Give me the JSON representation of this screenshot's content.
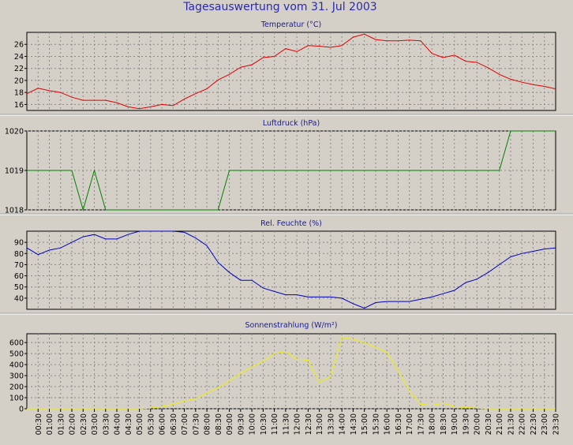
{
  "title": "Tagesauswertung vom 31. Jul 2003",
  "colors": {
    "temperature": "#e00000",
    "pressure": "#008000",
    "humidity": "#0000c0",
    "radiation": "#f0f000",
    "grid": "#888888"
  },
  "chart_data": [
    {
      "type": "line",
      "title": "Temperatur (°C)",
      "ylim": [
        15,
        28
      ],
      "yticks": [
        "16",
        "18",
        "20",
        "22",
        "24",
        "26"
      ],
      "series": [
        {
          "values": [
            17.8,
            18.7,
            18.3,
            18.0,
            17.2,
            16.7,
            16.7,
            16.7,
            16.3,
            15.6,
            15.3,
            15.6,
            16.0,
            15.8,
            16.9,
            17.8,
            18.6,
            20.1,
            21.0,
            22.2,
            22.6,
            23.8,
            24.0,
            25.3,
            24.8,
            25.8,
            25.7,
            25.5,
            25.8,
            27.2,
            27.7,
            26.8,
            26.6,
            26.6,
            26.7,
            26.6,
            24.5,
            23.8,
            24.2,
            23.2,
            23.0,
            22.1,
            21.0,
            20.2,
            19.7,
            19.3,
            19.0,
            18.6
          ]
        }
      ]
    },
    {
      "type": "line",
      "title": "Luftdruck (hPa)",
      "ylim": [
        1018,
        1020
      ],
      "yticks": [
        "1018",
        "1019",
        "1020"
      ],
      "series": [
        {
          "values": [
            1019,
            1019,
            1019,
            1019,
            1019,
            1018,
            1019,
            1018,
            1018,
            1018,
            1018,
            1018,
            1018,
            1018,
            1018,
            1018,
            1018,
            1018,
            1019,
            1019,
            1019,
            1019,
            1019,
            1019,
            1019,
            1019,
            1019,
            1019,
            1019,
            1019,
            1019,
            1019,
            1019,
            1019,
            1019,
            1019,
            1019,
            1019,
            1019,
            1019,
            1019,
            1019,
            1019,
            1020,
            1020,
            1020,
            1020,
            1020
          ]
        }
      ]
    },
    {
      "type": "line",
      "title": "Rel. Feuchte (%)",
      "ylim": [
        30,
        100
      ],
      "yticks": [
        "40",
        "50",
        "60",
        "70",
        "80",
        "90"
      ],
      "series": [
        {
          "values": [
            85,
            79,
            83,
            85,
            90,
            95,
            97,
            93,
            93,
            97,
            100,
            100,
            100,
            100,
            99,
            94,
            87,
            72,
            63,
            56,
            56,
            49,
            46,
            43,
            43,
            41,
            41,
            41,
            40,
            35,
            31,
            36,
            37,
            37,
            37,
            39,
            41,
            44,
            47,
            54,
            57,
            63,
            70,
            77,
            80,
            82,
            84,
            85
          ]
        }
      ]
    },
    {
      "type": "line",
      "title": "Sonnenstrahlung (W/m²)",
      "ylim": [
        0,
        680
      ],
      "yticks": [
        "0",
        "100",
        "200",
        "300",
        "400",
        "500",
        "600"
      ],
      "series": [
        {
          "values": [
            0,
            0,
            0,
            0,
            0,
            0,
            0,
            0,
            0,
            0,
            0,
            5,
            20,
            40,
            70,
            90,
            140,
            190,
            250,
            320,
            380,
            430,
            500,
            520,
            450,
            440,
            240,
            290,
            650,
            630,
            600,
            560,
            510,
            350,
            160,
            40,
            30,
            50,
            20,
            10,
            5,
            0,
            0,
            0,
            0,
            0,
            0,
            0
          ]
        }
      ]
    }
  ],
  "xticks": [
    "00:30",
    "01:00",
    "01:30",
    "02:00",
    "02:30",
    "03:00",
    "03:30",
    "04:00",
    "04:30",
    "05:00",
    "05:30",
    "06:00",
    "06:30",
    "07:00",
    "07:30",
    "08:00",
    "08:30",
    "09:00",
    "09:30",
    "10:00",
    "10:30",
    "11:00",
    "11:30",
    "12:00",
    "12:30",
    "13:00",
    "13:30",
    "14:00",
    "14:30",
    "15:00",
    "15:30",
    "16:00",
    "16:30",
    "17:00",
    "17:30",
    "18:00",
    "18:30",
    "19:00",
    "19:30",
    "20:00",
    "20:30",
    "21:00",
    "21:30",
    "22:00",
    "22:30",
    "23:00",
    "23:30"
  ]
}
